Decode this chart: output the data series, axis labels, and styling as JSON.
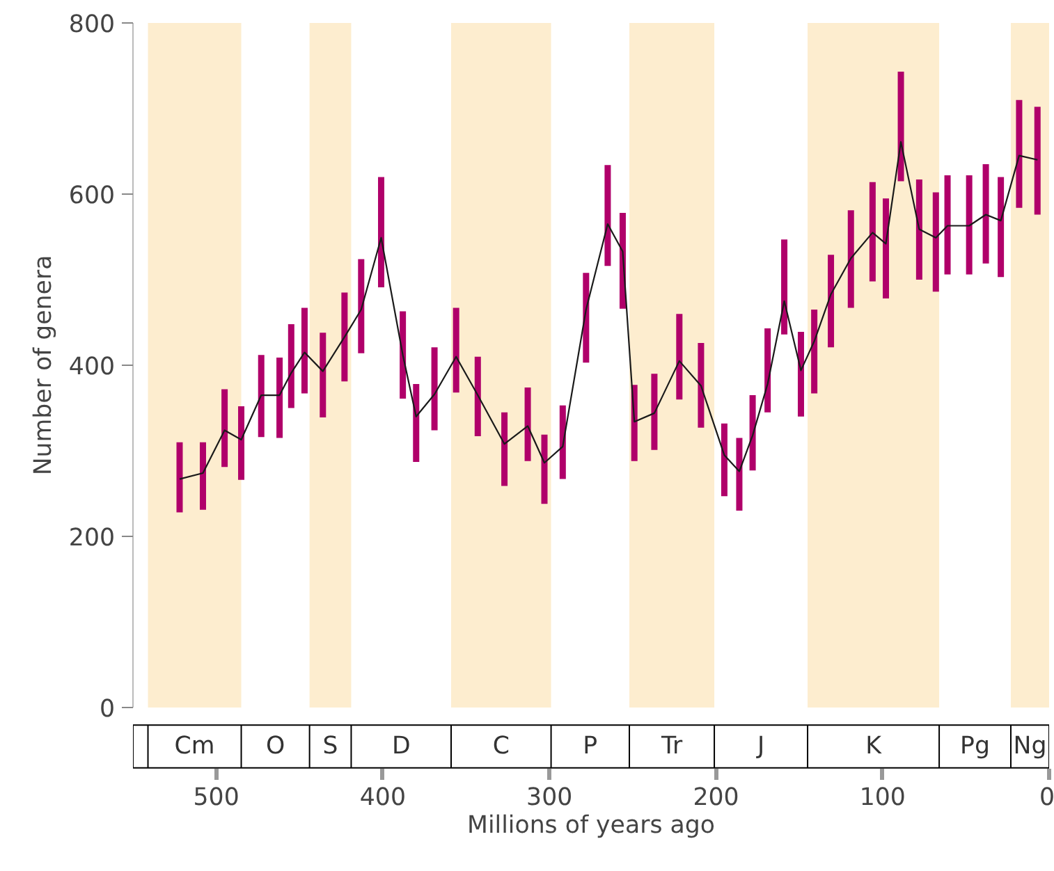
{
  "chart_data": {
    "type": "line",
    "xlabel": "Millions of years ago",
    "ylabel": "Number of genera",
    "xlim": [
      550,
      0
    ],
    "xticks": [
      500,
      400,
      300,
      200,
      100,
      0
    ],
    "ylim": [
      0,
      800
    ],
    "yticks": [
      0,
      200,
      400,
      600,
      800
    ],
    "grid": false,
    "marker": "none",
    "line_style": "solid",
    "annotations": [
      "O",
      "D",
      "P",
      "J",
      "Pg"
    ],
    "x": [
      522,
      508,
      495,
      485,
      473,
      462,
      455,
      447,
      436,
      423,
      413,
      401,
      388,
      380,
      369,
      356,
      343,
      327,
      313,
      303,
      292,
      278,
      265,
      256,
      249,
      237,
      222,
      209,
      195,
      186,
      178,
      169,
      159,
      149,
      141,
      131,
      119,
      106,
      98,
      89,
      78,
      68,
      61,
      48,
      38,
      29,
      18,
      7
    ],
    "series": [
      {
        "color": "#1a1a1a",
        "values": [
          267,
          274,
          324,
          313,
          365,
          365,
          391,
          415,
          393,
          433,
          465,
          549,
          412,
          340,
          366,
          410,
          365,
          308,
          329,
          286,
          305,
          465,
          565,
          533,
          334,
          344,
          405,
          376,
          295,
          276,
          318,
          378,
          475,
          394,
          428,
          483,
          525,
          555,
          542,
          661,
          559,
          549,
          563,
          563,
          576,
          569,
          645,
          640
        ],
        "errors": [
          [
            228,
            310
          ],
          [
            231,
            310
          ],
          [
            281,
            372
          ],
          [
            266,
            352
          ],
          [
            316,
            412
          ],
          [
            315,
            409
          ],
          [
            350,
            448
          ],
          [
            367,
            467
          ],
          [
            339,
            438
          ],
          [
            381,
            485
          ],
          [
            414,
            524
          ],
          [
            491,
            620
          ],
          [
            361,
            463
          ],
          [
            287,
            378
          ],
          [
            324,
            421
          ],
          [
            368,
            467
          ],
          [
            317,
            410
          ],
          [
            259,
            345
          ],
          [
            288,
            374
          ],
          [
            238,
            319
          ],
          [
            267,
            353
          ],
          [
            403,
            508
          ],
          [
            516,
            634
          ],
          [
            466,
            578
          ],
          [
            288,
            377
          ],
          [
            301,
            390
          ],
          [
            360,
            460
          ],
          [
            327,
            426
          ],
          [
            247,
            332
          ],
          [
            230,
            315
          ],
          [
            277,
            365
          ],
          [
            345,
            443
          ],
          [
            436,
            547
          ],
          [
            340,
            439
          ],
          [
            367,
            465
          ],
          [
            421,
            529
          ],
          [
            467,
            581
          ],
          [
            498,
            614
          ],
          [
            478,
            595
          ],
          [
            615,
            743
          ],
          [
            500,
            617
          ],
          [
            486,
            602
          ],
          [
            506,
            622
          ],
          [
            506,
            622
          ],
          [
            519,
            635
          ],
          [
            503,
            620
          ],
          [
            584,
            710
          ],
          [
            576,
            702
          ]
        ]
      }
    ],
    "bands": [
      {
        "axis": "x",
        "from": 541,
        "to": 485,
        "label": "Cm",
        "color": "#fdedcf"
      },
      {
        "axis": "x",
        "from": 444,
        "to": 419,
        "label": "S",
        "color": "#fdedcf"
      },
      {
        "axis": "x",
        "from": 359,
        "to": 299,
        "label": "C",
        "color": "#fdedcf"
      },
      {
        "axis": "x",
        "from": 252,
        "to": 201,
        "label": "Tr",
        "color": "#fdedcf"
      },
      {
        "axis": "x",
        "from": 145,
        "to": 66,
        "label": "K",
        "color": "#fdedcf"
      },
      {
        "axis": "x",
        "from": 23,
        "to": 0,
        "label": "Ng",
        "color": "#fdedcf"
      }
    ]
  }
}
